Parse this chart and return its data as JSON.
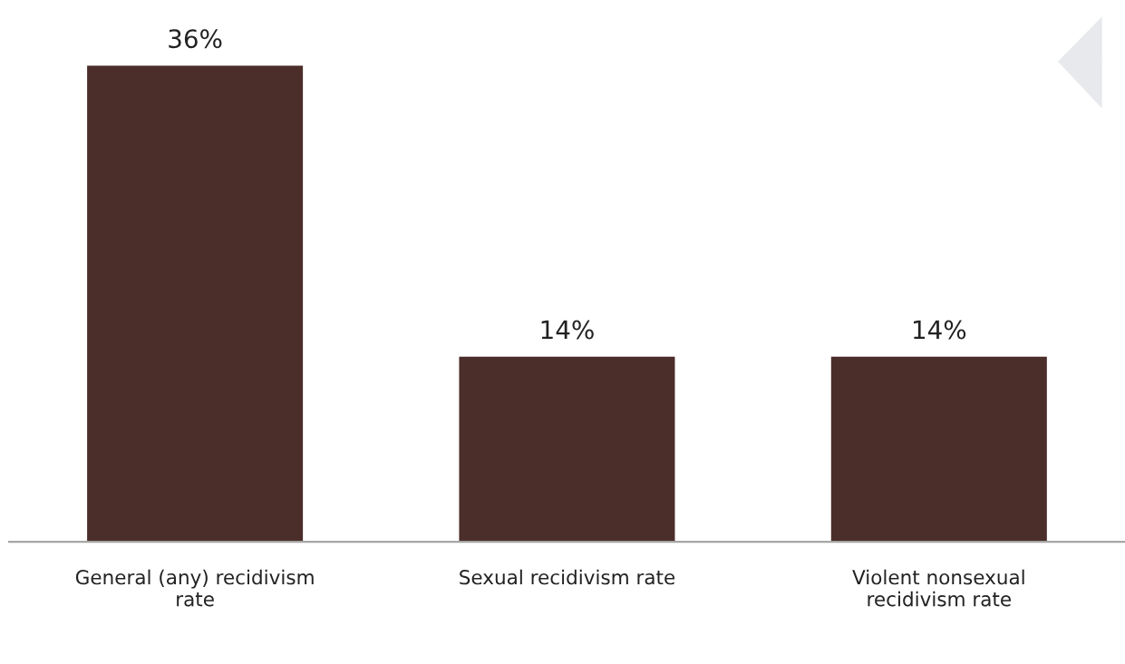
{
  "chart_data": {
    "type": "bar",
    "categories": [
      "General (any) recidivism\nrate",
      "Sexual recidivism rate",
      "Violent nonsexual\nrecidivism rate"
    ],
    "values": [
      36,
      14,
      14
    ],
    "value_labels": [
      "36%",
      "14%",
      "14%"
    ],
    "color": "#4b2e2a",
    "tick_labels": "x",
    "grid": false,
    "legend": false
  }
}
